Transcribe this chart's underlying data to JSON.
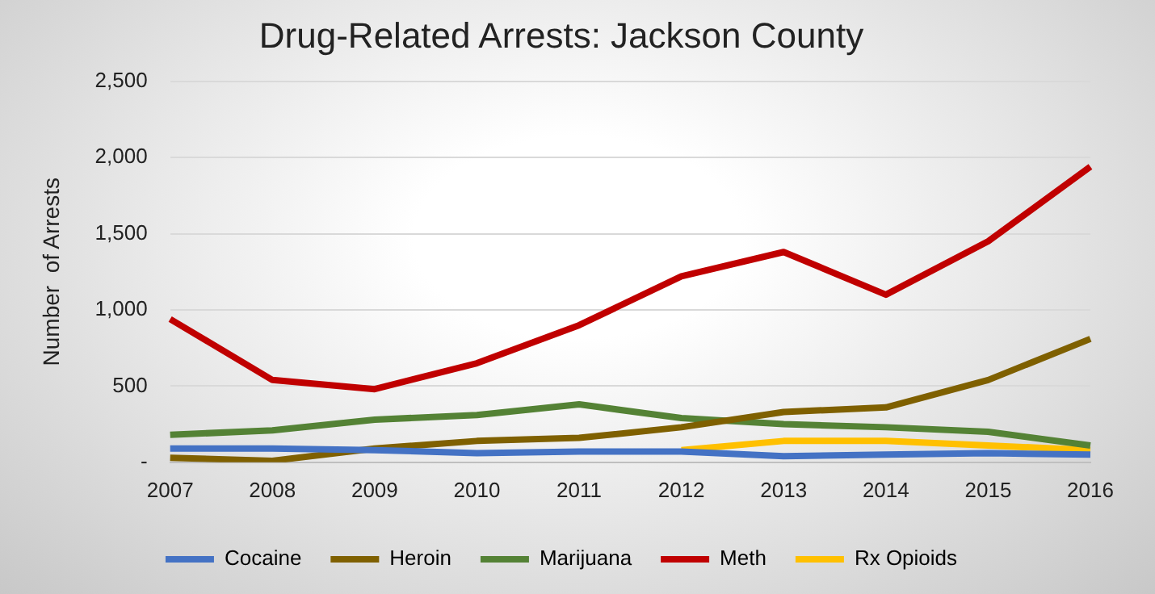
{
  "chart_data": {
    "type": "line",
    "title": "Drug-Related Arrests: Jackson County",
    "ylabel": "Number  of Arrests",
    "categories": [
      "2007",
      "2008",
      "2009",
      "2010",
      "2011",
      "2012",
      "2013",
      "2014",
      "2015",
      "2016"
    ],
    "series": [
      {
        "name": "Cocaine",
        "color": "#4472c4",
        "values": [
          90,
          90,
          80,
          60,
          70,
          70,
          40,
          50,
          60,
          50
        ]
      },
      {
        "name": "Heroin",
        "color": "#7f6000",
        "values": [
          30,
          10,
          90,
          140,
          160,
          230,
          330,
          360,
          540,
          810
        ]
      },
      {
        "name": "Marijuana",
        "color": "#548235",
        "values": [
          180,
          210,
          280,
          310,
          380,
          290,
          250,
          230,
          200,
          110
        ]
      },
      {
        "name": "Meth",
        "color": "#c00000",
        "values": [
          940,
          540,
          480,
          650,
          900,
          1220,
          1380,
          1100,
          1450,
          1940
        ]
      },
      {
        "name": "Rx Opioids",
        "color": "#ffc000",
        "values": [
          null,
          null,
          null,
          null,
          null,
          80,
          140,
          140,
          110,
          80
        ]
      }
    ],
    "ylim": [
      0,
      2500
    ],
    "yticks": [
      {
        "value": 0,
        "label": "-"
      },
      500,
      {
        "value": 1000,
        "label": "1,000"
      },
      {
        "value": 1500,
        "label": "1,500"
      },
      {
        "value": 2000,
        "label": "2,000"
      },
      {
        "value": 2500,
        "label": "2,500"
      }
    ],
    "grid": "y",
    "legend": "bottom",
    "marker": "none",
    "line_style": "solid"
  }
}
